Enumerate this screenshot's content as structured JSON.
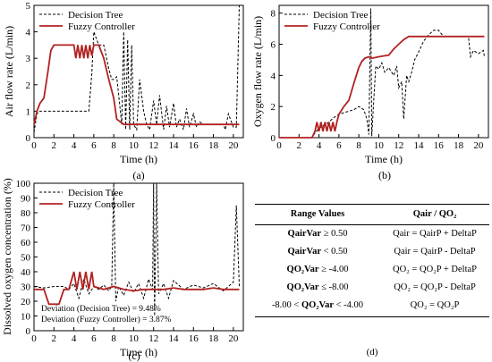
{
  "chart_data": [
    {
      "panel": "(a)",
      "type": "line",
      "xlabel": "Time (h)",
      "ylabel": "Air flow rate (L/min)",
      "xlim": [
        0,
        21
      ],
      "ylim": [
        0,
        5
      ],
      "xticks": [
        0,
        2,
        4,
        6,
        8,
        10,
        12,
        14,
        16,
        18,
        20
      ],
      "yticks": [
        0,
        1,
        2,
        3,
        4,
        5
      ],
      "legend": "top-left",
      "series": [
        {
          "name": "Decision Tree",
          "style": "dashed",
          "color": "#000000",
          "x": [
            0,
            0.3,
            0.5,
            5.5,
            5.8,
            6.0,
            6.5,
            7.0,
            7.5,
            7.8,
            8.0,
            8.3,
            8.5,
            8.8,
            9.0,
            9.2,
            9.4,
            9.6,
            9.8,
            10.0,
            10.3,
            10.6,
            11.0,
            11.3,
            11.6,
            12.0,
            12.3,
            12.6,
            13.0,
            13.3,
            13.6,
            14.0,
            14.3,
            14.6,
            15.0,
            15.3,
            15.6,
            16.0,
            16.3,
            16.6,
            17.0,
            19.0,
            19.2,
            19.5,
            19.8,
            20.0,
            20.3,
            20.6
          ],
          "y": [
            0.2,
            0.9,
            1.0,
            1.0,
            2.4,
            4.0,
            3.5,
            3.5,
            2.6,
            2.2,
            2.2,
            2.3,
            1.6,
            0.5,
            4.0,
            0.3,
            3.7,
            0.3,
            3.5,
            0.5,
            0.3,
            2.2,
            1.0,
            0.5,
            0.3,
            1.4,
            0.5,
            1.6,
            0.3,
            1.2,
            0.4,
            1.3,
            0.4,
            0.7,
            0.3,
            1.1,
            0.4,
            0.9,
            0.4,
            0.6,
            0.5,
            0.5,
            0.3,
            0.9,
            0.6,
            0.4,
            0.4,
            5.0
          ]
        },
        {
          "name": "Fuzzy Controller",
          "style": "solid",
          "color": "#b22222",
          "x": [
            0,
            0.3,
            0.6,
            1.0,
            1.4,
            1.7,
            2.0,
            4.0,
            4.2,
            4.4,
            4.6,
            4.8,
            5.0,
            5.2,
            5.4,
            5.6,
            5.8,
            6.0,
            6.5,
            7.0,
            7.5,
            8.0,
            8.3,
            9.0,
            10.0,
            15.0,
            20.0,
            20.6
          ],
          "y": [
            0.5,
            1.0,
            1.3,
            1.5,
            2.5,
            3.3,
            3.5,
            3.5,
            3.0,
            3.5,
            3.0,
            3.5,
            3.0,
            3.5,
            3.0,
            3.5,
            3.1,
            3.5,
            3.5,
            3.0,
            2.2,
            1.5,
            0.7,
            0.5,
            0.5,
            0.5,
            0.5,
            0.5
          ]
        }
      ],
      "tag": "(a)"
    },
    {
      "panel": "(b)",
      "type": "line",
      "xlabel": "Time (h)",
      "ylabel": "Oxygen flow rate (L/min)",
      "xlim": [
        0,
        21
      ],
      "ylim": [
        0,
        8.5
      ],
      "xticks": [
        0,
        2,
        4,
        6,
        8,
        10,
        12,
        14,
        16,
        18,
        20
      ],
      "yticks": [
        0,
        2,
        4,
        6,
        8
      ],
      "legend": "top-left",
      "series": [
        {
          "name": "Decision Tree",
          "style": "dashed",
          "color": "#000000",
          "x": [
            0,
            3.3,
            3.6,
            4.0,
            4.5,
            5.0,
            5.5,
            6.0,
            6.5,
            7.0,
            7.5,
            8.0,
            8.5,
            8.8,
            9.0,
            9.2,
            9.3,
            9.5,
            9.7,
            10.0,
            10.3,
            10.6,
            11.0,
            11.5,
            11.8,
            12.0,
            12.3,
            12.5,
            12.8,
            13.0,
            13.3,
            13.6,
            14.0,
            14.5,
            15.0,
            15.5,
            16.0,
            16.5,
            19.0,
            19.2,
            19.5,
            20.0,
            20.5,
            20.6
          ],
          "y": [
            0,
            0,
            0.3,
            0.6,
            0.8,
            1.0,
            1.3,
            1.5,
            1.6,
            1.7,
            1.8,
            2.0,
            1.8,
            1.2,
            0.2,
            8.3,
            0.1,
            2.5,
            4.6,
            4.4,
            4.8,
            4.2,
            4.5,
            4.0,
            4.6,
            3.2,
            3.6,
            1.2,
            4.0,
            3.6,
            4.2,
            5.0,
            5.5,
            6.2,
            6.6,
            6.9,
            6.9,
            6.5,
            6.5,
            5.2,
            5.6,
            5.4,
            5.6,
            5.2
          ]
        },
        {
          "name": "Fuzzy Controller",
          "style": "solid",
          "color": "#b22222",
          "x": [
            0,
            3.3,
            3.6,
            3.8,
            4.0,
            4.2,
            4.4,
            4.6,
            4.8,
            5.0,
            5.2,
            5.4,
            5.6,
            5.8,
            6.0,
            6.5,
            7.0,
            7.5,
            8.0,
            8.3,
            8.6,
            9.0,
            9.3,
            10.0,
            11.0,
            11.5,
            12.0,
            12.5,
            13.0,
            20.6
          ],
          "y": [
            0,
            0,
            0.4,
            1.0,
            0.4,
            1.0,
            0.4,
            1.0,
            0.4,
            1.0,
            0.4,
            1.0,
            0.4,
            1.0,
            1.5,
            2.0,
            2.4,
            3.5,
            4.5,
            4.9,
            5.1,
            5.2,
            5.1,
            5.2,
            5.3,
            5.7,
            6.0,
            6.3,
            6.5,
            6.5
          ]
        }
      ],
      "tag": "(b)"
    },
    {
      "panel": "(c)",
      "type": "line",
      "xlabel": "Time (h)",
      "ylabel": "Dissolved oxygen concentration (%)",
      "xlim": [
        0,
        21
      ],
      "ylim": [
        0,
        100
      ],
      "xticks": [
        0,
        2,
        4,
        6,
        8,
        10,
        12,
        14,
        16,
        18,
        20
      ],
      "yticks": [
        0,
        10,
        20,
        30,
        40,
        50,
        60,
        70,
        80,
        90,
        100
      ],
      "legend": "top-left",
      "annotations": [
        "Deviation (Decision Tree) = 9.48%",
        "Deviation (Fuzzy Controller) = 3.87%"
      ],
      "series": [
        {
          "name": "Decision Tree",
          "style": "dashed",
          "color": "#000000",
          "x": [
            0,
            1,
            2,
            3,
            3.5,
            4,
            4.5,
            5,
            5.5,
            6,
            6.5,
            7,
            7.5,
            7.8,
            8.0,
            8.2,
            8.5,
            9,
            9.5,
            10,
            10.5,
            11,
            11.5,
            11.9,
            12.0,
            12.1,
            12.3,
            12.5,
            13,
            13.5,
            14,
            15,
            16,
            17,
            18,
            19,
            20,
            20.3,
            20.6
          ],
          "y": [
            30,
            29,
            30,
            30,
            28,
            32,
            22,
            35,
            25,
            30,
            28,
            31,
            27,
            30,
            100,
            20,
            30,
            24,
            33,
            26,
            32,
            22,
            35,
            28,
            100,
            10,
            100,
            25,
            32,
            22,
            34,
            28,
            31,
            29,
            32,
            27,
            33,
            85,
            30
          ]
        },
        {
          "name": "Fuzzy Controller",
          "style": "solid",
          "color": "#b22222",
          "x": [
            0,
            1,
            1.5,
            2.5,
            3.0,
            3.5,
            4.0,
            4.3,
            4.6,
            4.9,
            5.2,
            5.5,
            5.8,
            6.0,
            7,
            8,
            9,
            10,
            11,
            12,
            13,
            14,
            15,
            16,
            17,
            18,
            19,
            20,
            20.6
          ],
          "y": [
            28,
            28,
            18,
            18,
            28,
            28,
            40,
            28,
            40,
            28,
            40,
            28,
            40,
            30,
            28,
            30,
            28,
            27,
            28,
            28,
            28,
            29,
            28,
            28,
            28,
            29,
            28,
            28,
            28
          ]
        }
      ],
      "tag": "(c)"
    }
  ],
  "table_d": {
    "col1_header": "Range Values",
    "col2_header": "Qair / QO₂",
    "rows": [
      {
        "var": "QairVar",
        "cond": "≥ 0.50",
        "rule": "Qair = QairP + DeltaP"
      },
      {
        "var": "QairVar",
        "cond": "< 0.50",
        "rule": "Qair = QairP - DeltaP"
      },
      {
        "var": "QO₂Var",
        "cond": "≥ -4.00",
        "rule": "QO₂ = QO₂P + DeltaP"
      },
      {
        "var": "QO₂Var",
        "cond": "≤ -8.00",
        "rule": "QO₂ = QO₂P - DeltaP"
      },
      {
        "var": "QO₂Var",
        "cond_pre": "-8.00 <",
        "cond": "< -4.00",
        "rule": "QO₂ = QO₂P"
      }
    ],
    "tag": "(d)"
  }
}
